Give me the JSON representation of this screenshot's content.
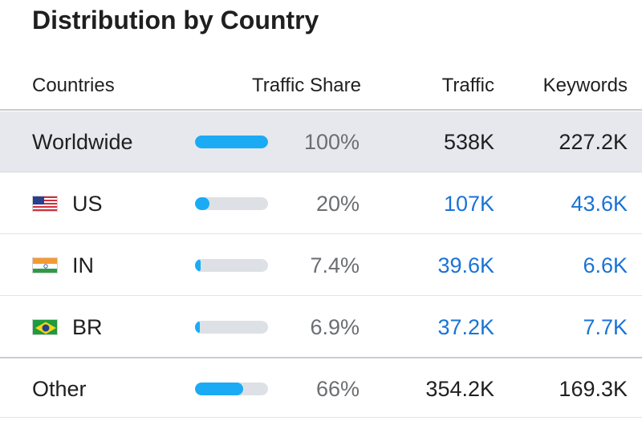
{
  "title": "Distribution by Country",
  "headers": {
    "countries": "Countries",
    "traffic_share": "Traffic Share",
    "traffic": "Traffic",
    "keywords": "Keywords"
  },
  "colors": {
    "bar_fill": "#1aabf4",
    "bar_track": "#dde1e5",
    "link": "#1a73d6",
    "highlight_row": "#e7e8ee"
  },
  "rows": [
    {
      "name": "Worldwide",
      "flag": null,
      "share": "100%",
      "share_value": 1.0,
      "traffic": "538K",
      "keywords": "227.2K",
      "linked": false,
      "highlight": true
    },
    {
      "name": "US",
      "flag": "us-flag-icon",
      "share": "20%",
      "share_value": 0.2,
      "traffic": "107K",
      "keywords": "43.6K",
      "linked": true,
      "highlight": false
    },
    {
      "name": "IN",
      "flag": "in-flag-icon",
      "share": "7.4%",
      "share_value": 0.074,
      "traffic": "39.6K",
      "keywords": "6.6K",
      "linked": true,
      "highlight": false
    },
    {
      "name": "BR",
      "flag": "br-flag-icon",
      "share": "6.9%",
      "share_value": 0.069,
      "traffic": "37.2K",
      "keywords": "7.7K",
      "linked": true,
      "highlight": false
    },
    {
      "name": "Other",
      "flag": null,
      "share": "66%",
      "share_value": 0.66,
      "traffic": "354.2K",
      "keywords": "169.3K",
      "linked": false,
      "highlight": false
    }
  ]
}
